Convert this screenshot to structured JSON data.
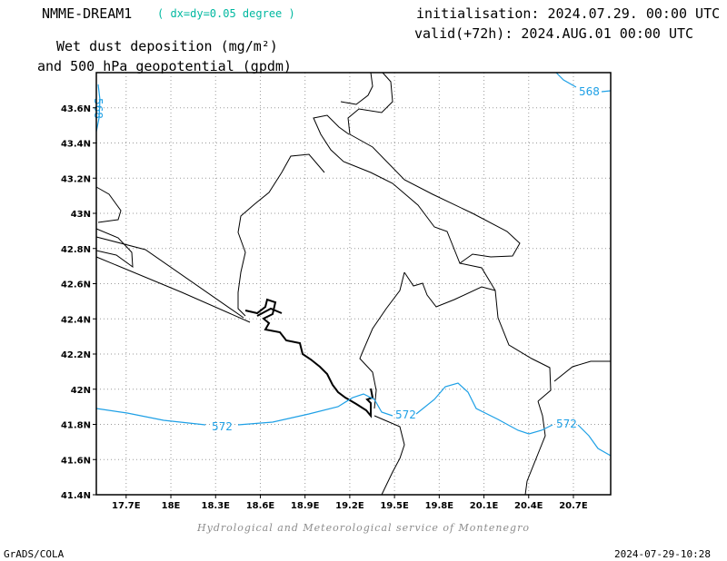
{
  "header": {
    "model_name": "NMME-DREAM1",
    "resolution": "( dx=dy=0.05 degree )",
    "initialisation": "initialisation: 2024.07.29. 00:00 UTC",
    "valid": "valid(+72h): 2024.AUG.01 00:00 UTC",
    "title_line1": "Wet dust deposition (mg/m²)",
    "title_line2": "and 500 hPa geopotential (gpdm)"
  },
  "map": {
    "lon_range": [
      17.5,
      20.95
    ],
    "lat_range": [
      41.4,
      43.8
    ],
    "lon_ticks": [
      "17.7E",
      "18E",
      "18.3E",
      "18.6E",
      "18.9E",
      "19.2E",
      "19.5E",
      "19.8E",
      "20.1E",
      "20.4E",
      "20.7E"
    ],
    "lat_ticks": [
      "41.4N",
      "41.6N",
      "41.8N",
      "42N",
      "42.2N",
      "42.4N",
      "42.6N",
      "42.8N",
      "43N",
      "43.2N",
      "43.4N",
      "43.6N"
    ],
    "contour_labels": [
      "568",
      "572",
      "572",
      "572",
      "568"
    ],
    "colors": {
      "contour": "#1ea0e6",
      "coastline": "#000000",
      "grid": "#9a9a9a",
      "credit": "#8c8c8c",
      "resolution": "#00b8a0"
    }
  },
  "footer": {
    "credit": "Hydrological and Meteorological service of Montenegro",
    "software": "GrADS/COLA",
    "timestamp": "2024-07-29-10:28"
  }
}
